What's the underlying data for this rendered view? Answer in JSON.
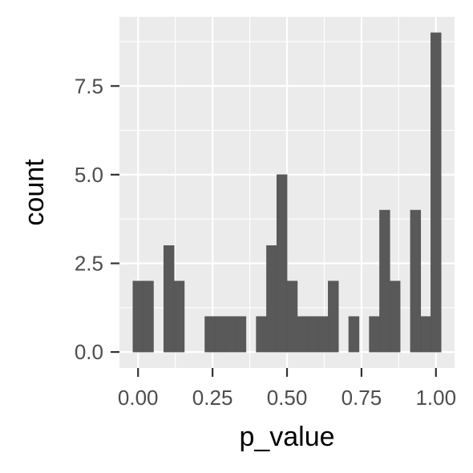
{
  "chart_data": {
    "type": "bar",
    "xlabel": "p_value",
    "ylabel": "count",
    "xlim": [
      -0.0625,
      1.0625
    ],
    "ylim": [
      -0.45,
      9.45
    ],
    "x_ticks": [
      0,
      0.25,
      0.5,
      0.75,
      1
    ],
    "x_tick_labels": [
      "0.00",
      "0.25",
      "0.50",
      "0.75",
      "1.00"
    ],
    "y_ticks": [
      0,
      2.5,
      5,
      7.5
    ],
    "y_tick_labels": [
      "0.0",
      "2.5",
      "5.0",
      "7.5"
    ],
    "bin_width": 0.0345,
    "x": [
      0.0,
      0.0345,
      0.069,
      0.1035,
      0.138,
      0.1725,
      0.207,
      0.2415,
      0.276,
      0.3105,
      0.345,
      0.3795,
      0.414,
      0.4485,
      0.483,
      0.5175,
      0.552,
      0.5865,
      0.621,
      0.6555,
      0.69,
      0.7245,
      0.759,
      0.7935,
      0.828,
      0.8625,
      0.897,
      0.9315,
      0.966,
      1.0
    ],
    "values": [
      2,
      2,
      0,
      3,
      2,
      0,
      0,
      1,
      1,
      1,
      1,
      0,
      1,
      3,
      5,
      2,
      1,
      1,
      1,
      2,
      0,
      1,
      0,
      1,
      4,
      2,
      0,
      4,
      1,
      9
    ],
    "grid": true,
    "bar_color": "#595959",
    "panel_background": "#ebebeb",
    "grid_color": "#ffffff"
  }
}
